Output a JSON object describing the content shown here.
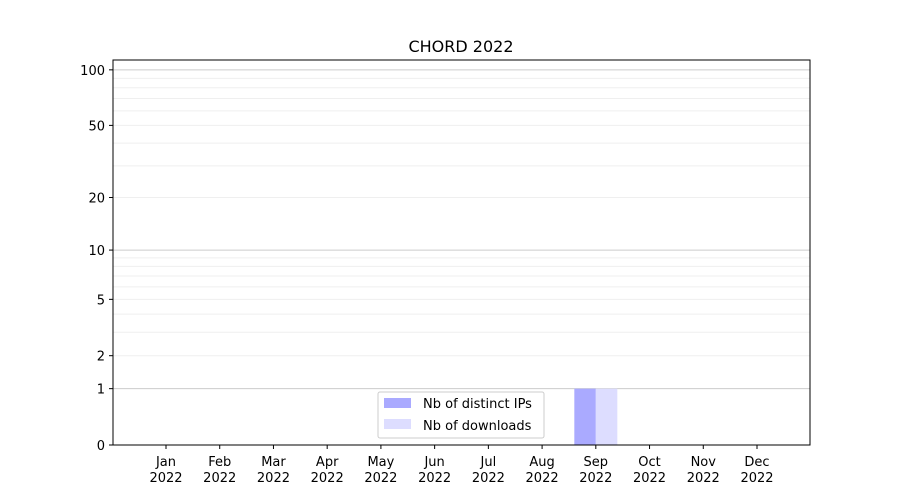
{
  "chart_data": {
    "type": "bar",
    "title": "CHORD 2022",
    "xlabel": "",
    "ylabel": "",
    "y_scale": "log(1+y)",
    "ylim": [
      0,
      113
    ],
    "y_ticks": [
      0,
      1,
      2,
      5,
      10,
      20,
      50,
      100
    ],
    "y_major_grid": [
      1,
      10,
      100
    ],
    "y_minor_grid": [
      2,
      3,
      4,
      5,
      6,
      7,
      8,
      9,
      20,
      30,
      40,
      50,
      60,
      70,
      80,
      90
    ],
    "grid": true,
    "categories": [
      "Jan\n2022",
      "Feb\n2022",
      "Mar\n2022",
      "Apr\n2022",
      "May\n2022",
      "Jun\n2022",
      "Jul\n2022",
      "Aug\n2022",
      "Sep\n2022",
      "Oct\n2022",
      "Nov\n2022",
      "Dec\n2022"
    ],
    "category_months": [
      "Jan",
      "Feb",
      "Mar",
      "Apr",
      "May",
      "Jun",
      "Jul",
      "Aug",
      "Sep",
      "Oct",
      "Nov",
      "Dec"
    ],
    "category_year": "2022",
    "series": [
      {
        "name": "Nb of distinct IPs",
        "color": "#aaaaff",
        "values": [
          0,
          0,
          0,
          0,
          0,
          0,
          0,
          0,
          1,
          0,
          0,
          0
        ]
      },
      {
        "name": "Nb of downloads",
        "color": "#ddddff",
        "values": [
          0,
          0,
          0,
          0,
          0,
          0,
          0,
          0,
          1,
          0,
          0,
          0
        ]
      }
    ],
    "legend_position": "lower center"
  }
}
